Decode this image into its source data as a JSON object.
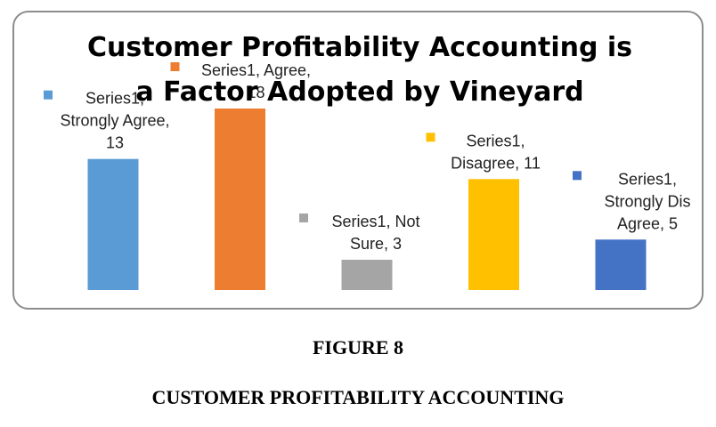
{
  "chart_data": {
    "type": "bar",
    "title_lines": [
      "Customer Profitability Accounting  is",
      "a Factor Adopted by Vineyard"
    ],
    "categories": [
      "Strongly Agree",
      "Agree",
      "Not Sure",
      "Disagree",
      "Strongly Dis Agree"
    ],
    "series": [
      {
        "name": "Series1",
        "values": [
          13,
          18,
          3,
          11,
          5
        ]
      }
    ],
    "colors": [
      "#5b9bd5",
      "#ed7d31",
      "#a5a5a5",
      "#ffc000",
      "#4472c4"
    ],
    "data_labels": [
      [
        "Series1,",
        "Strongly Agree,",
        "13"
      ],
      [
        "Series1, Agree,",
        "18"
      ],
      [
        "Series1, Not",
        "Sure, 3"
      ],
      [
        "Series1,",
        "Disagree, 11"
      ],
      [
        "Series1,",
        "Strongly Dis",
        "Agree, 5"
      ]
    ],
    "ylim": [
      0,
      18
    ],
    "grid": false,
    "legend": "none",
    "xlabel": "",
    "ylabel": ""
  },
  "figure": {
    "number": "FIGURE 8",
    "caption": "CUSTOMER PROFITABILITY ACCOUNTING"
  }
}
